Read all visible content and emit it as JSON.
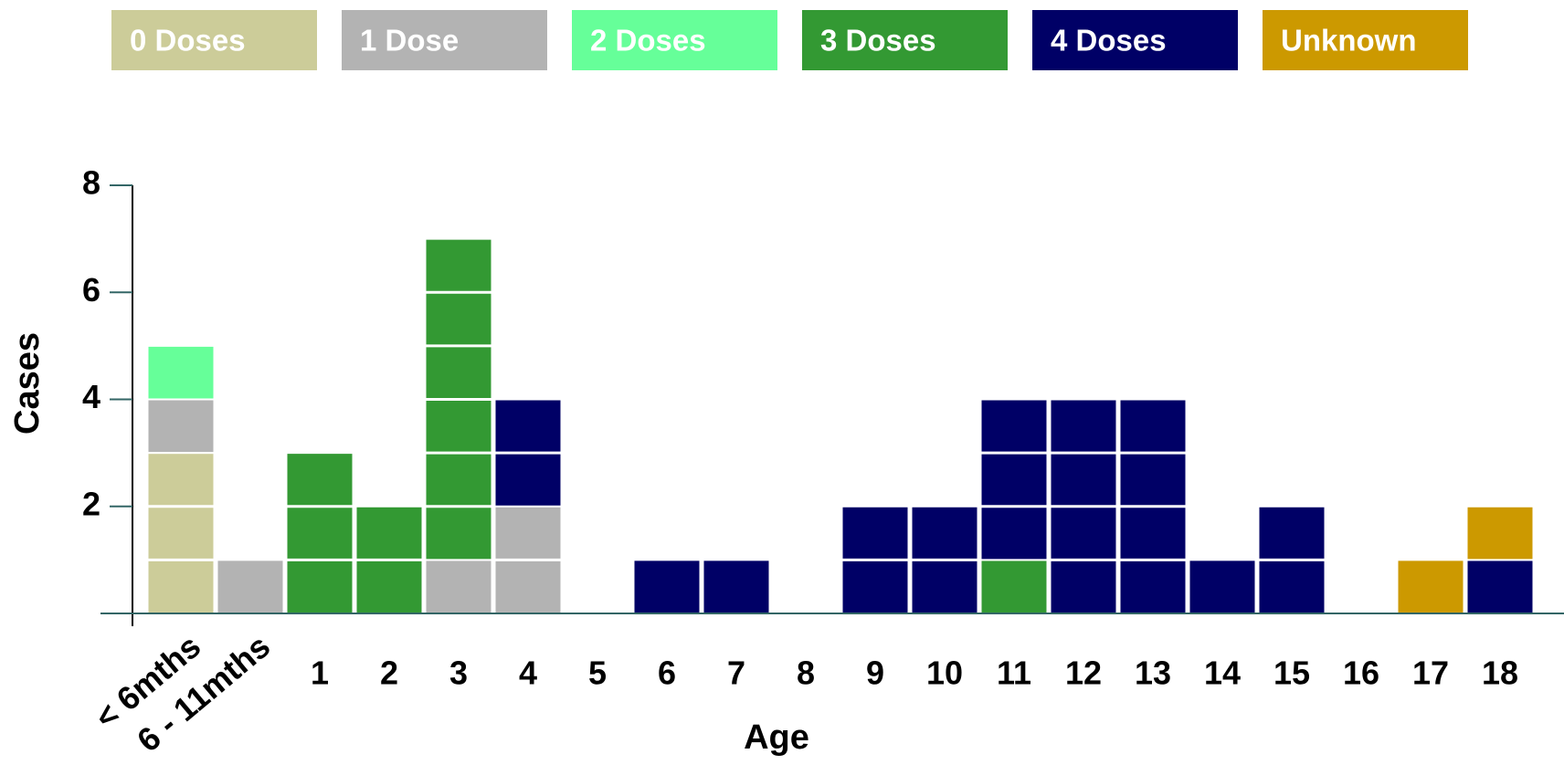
{
  "chart_data": {
    "type": "stacked_bar",
    "x_label": "Age",
    "y_label": "Cases",
    "categories": [
      "< 6mths",
      "6 - 11mths",
      "1",
      "2",
      "3",
      "4",
      "5",
      "6",
      "7",
      "8",
      "9",
      "10",
      "11",
      "12",
      "13",
      "14",
      "15",
      "16",
      "17",
      "18"
    ],
    "series": [
      {
        "name": "0 Doses",
        "color": "#cccc99",
        "values": [
          3,
          0,
          0,
          0,
          0,
          0,
          0,
          0,
          0,
          0,
          0,
          0,
          0,
          0,
          0,
          0,
          0,
          0,
          0,
          0
        ]
      },
      {
        "name": "1 Dose",
        "color": "#b3b3b3",
        "values": [
          1,
          1,
          0,
          0,
          1,
          2,
          0,
          0,
          0,
          0,
          0,
          0,
          0,
          0,
          0,
          0,
          0,
          0,
          0,
          0
        ]
      },
      {
        "name": "2 Doses",
        "color": "#66ff99",
        "values": [
          1,
          0,
          0,
          0,
          0,
          0,
          0,
          0,
          0,
          0,
          0,
          0,
          0,
          0,
          0,
          0,
          0,
          0,
          0,
          0
        ]
      },
      {
        "name": "3 Doses",
        "color": "#339933",
        "values": [
          0,
          0,
          3,
          2,
          6,
          0,
          0,
          0,
          0,
          0,
          0,
          0,
          1,
          0,
          0,
          0,
          0,
          0,
          0,
          0
        ]
      },
      {
        "name": "4 Doses",
        "color": "#000066",
        "values": [
          0,
          0,
          0,
          0,
          0,
          2,
          0,
          1,
          1,
          0,
          2,
          2,
          3,
          4,
          4,
          1,
          2,
          0,
          0,
          1
        ]
      },
      {
        "name": "Unknown",
        "color": "#cc9900",
        "values": [
          0,
          0,
          0,
          0,
          0,
          0,
          0,
          0,
          0,
          0,
          0,
          0,
          0,
          0,
          0,
          0,
          0,
          0,
          1,
          1
        ]
      }
    ],
    "ylim": [
      0,
      8
    ],
    "yticks": [
      2,
      4,
      6,
      8
    ],
    "legend": "top"
  }
}
